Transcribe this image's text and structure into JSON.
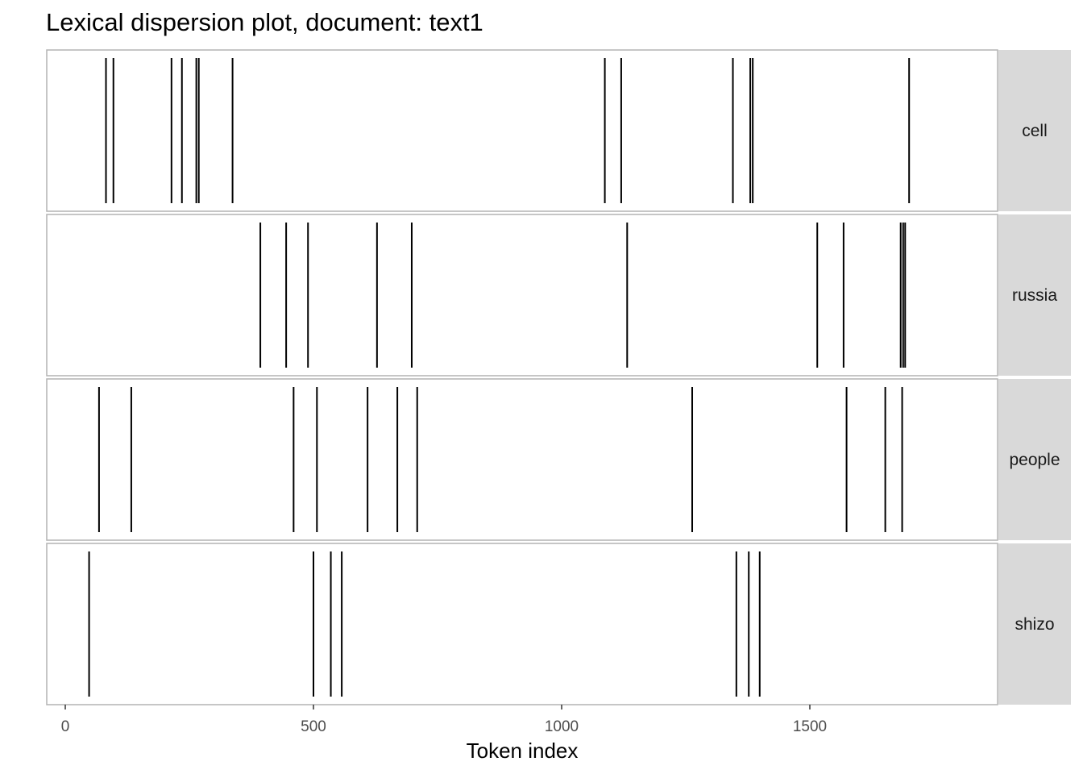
{
  "chart_data": {
    "type": "lexical-dispersion",
    "title": "Lexical dispersion plot, document: text1",
    "xlabel": "Token index",
    "ylabel": "",
    "xlim": [
      -80,
      1870
    ],
    "x_ticks": [
      {
        "value": 0,
        "label": "0"
      },
      {
        "value": 500,
        "label": "500"
      },
      {
        "value": 1000,
        "label": "1000"
      },
      {
        "value": 1500,
        "label": "1500"
      }
    ],
    "grid": false,
    "facets": [
      {
        "keyword": "cell",
        "positions": [
          82,
          97,
          214,
          235,
          264,
          269,
          337,
          1087,
          1120,
          1345,
          1380,
          1385,
          1700
        ]
      },
      {
        "keyword": "russia",
        "positions": [
          393,
          445,
          489,
          628,
          698,
          1132,
          1515,
          1568,
          1683,
          1688,
          1692
        ]
      },
      {
        "keyword": "people",
        "positions": [
          68,
          133,
          460,
          507,
          609,
          669,
          709,
          1263,
          1574,
          1652,
          1686
        ]
      },
      {
        "keyword": "shizo",
        "positions": [
          48,
          500,
          535,
          557,
          1352,
          1377,
          1399
        ]
      }
    ]
  }
}
